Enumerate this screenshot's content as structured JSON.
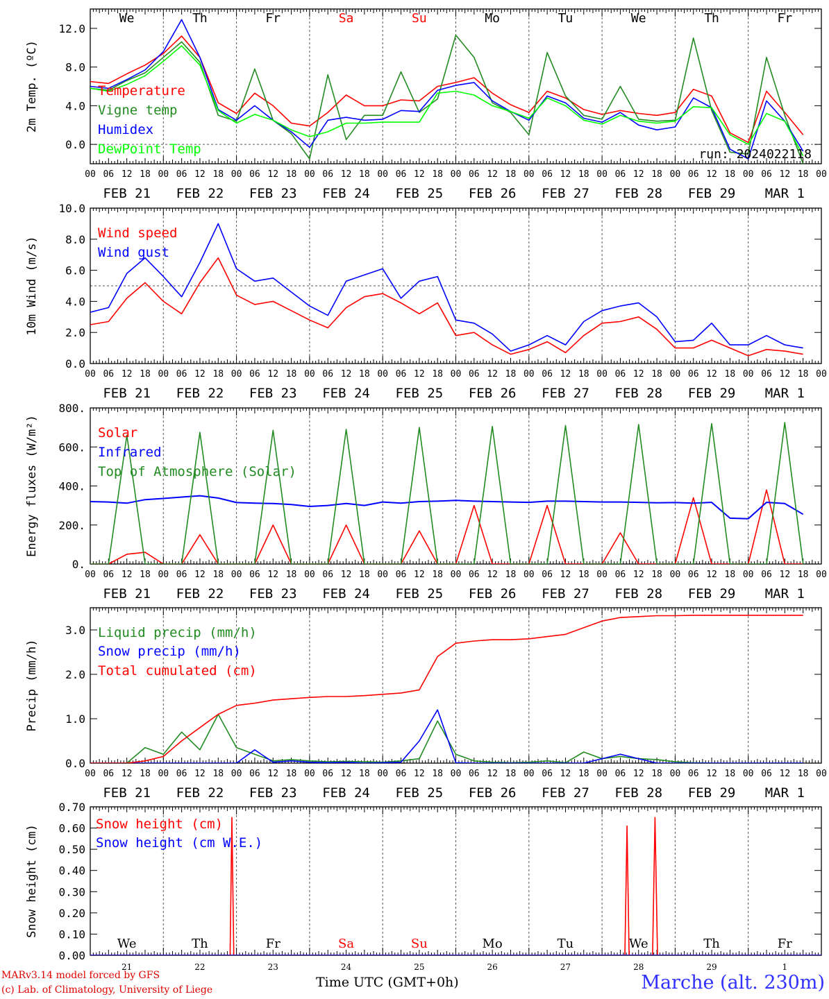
{
  "run_label": "run: 2024022118",
  "footer": {
    "credit_line1": "MARv3.14 model forced by GFS",
    "credit_line2": "(c) Lab. of Climatology, University of Liege",
    "x_axis_title": "Time UTC (GMT+0h)",
    "station": "Marche (alt. 230m)"
  },
  "x_axis": {
    "hour_ticks": [
      "00",
      "06",
      "12",
      "18"
    ],
    "date_labels": [
      "FEB 21",
      "FEB 22",
      "FEB 23",
      "FEB 24",
      "FEB 25",
      "FEB 26",
      "FEB 27",
      "FEB 28",
      "FEB 29",
      "MAR  1"
    ],
    "weekday_labels": [
      "We",
      "Th",
      "Fr",
      "Sa",
      "Su",
      "Mo",
      "Tu",
      "We",
      "Th",
      "Fr"
    ],
    "weekend_indices": [
      3,
      4
    ],
    "day_numbers": [
      "21",
      "22",
      "23",
      "24",
      "25",
      "26",
      "27",
      "28",
      "29",
      "1"
    ]
  },
  "colors": {
    "red": "#ff0000",
    "dark_green": "#228b22",
    "blue": "#0000ff",
    "light_green": "#00ff00",
    "weekend": "#ff0000"
  },
  "chart_data": [
    {
      "type": "line",
      "ylabel": "2m Temp. (ºC)",
      "ylim": [
        -2,
        14
      ],
      "yticks": [
        0,
        4,
        8,
        12
      ],
      "ytick_labels": [
        "0.0",
        "4.0",
        "8.0",
        "12.0"
      ],
      "ref_line": 0,
      "x_hours_step": 6,
      "series": [
        {
          "name": "Temperature",
          "color": "#ff0000",
          "values": [
            6.5,
            6.3,
            7.3,
            8.2,
            9.4,
            11.2,
            9.0,
            4.3,
            3.2,
            5.3,
            4.0,
            2.2,
            1.9,
            3.3,
            5.1,
            4.0,
            4.0,
            4.6,
            4.5,
            6.0,
            6.4,
            6.9,
            5.3,
            4.1,
            3.3,
            5.5,
            4.8,
            3.6,
            3.1,
            3.5,
            3.2,
            3.0,
            3.3,
            5.7,
            5.0,
            1.2,
            0.2,
            5.5,
            3.3,
            1.0
          ]
        },
        {
          "name": "Vigne temp",
          "color": "#228b22",
          "values": [
            5.8,
            5.6,
            6.6,
            7.4,
            9.0,
            10.6,
            8.5,
            3.0,
            2.4,
            7.8,
            2.5,
            1.1,
            -1.5,
            7.2,
            0.5,
            3.0,
            3.0,
            7.5,
            3.3,
            4.7,
            11.3,
            9.0,
            4.3,
            3.3,
            1.0,
            9.5,
            5.0,
            3.0,
            2.6,
            6.0,
            2.6,
            2.4,
            2.5,
            11.0,
            3.5,
            -0.8,
            -1.0,
            9.0,
            3.0,
            -2.0
          ]
        },
        {
          "name": "Humidex",
          "color": "#0000ff",
          "values": [
            6.0,
            5.8,
            6.7,
            7.7,
            9.6,
            12.9,
            9.0,
            3.6,
            2.5,
            4.0,
            2.5,
            1.3,
            -0.3,
            2.5,
            2.8,
            2.5,
            2.6,
            3.5,
            3.4,
            5.6,
            6.1,
            6.4,
            4.5,
            3.4,
            2.5,
            5.0,
            4.3,
            2.7,
            2.3,
            3.3,
            2.0,
            1.5,
            1.8,
            4.8,
            3.8,
            -0.5,
            -1.5,
            4.5,
            2.4,
            -0.7
          ]
        },
        {
          "name": "DewPoint Temp",
          "color": "#00ff00",
          "values": [
            5.8,
            5.5,
            6.2,
            7.1,
            8.6,
            10.2,
            8.2,
            3.5,
            2.2,
            3.1,
            2.5,
            1.5,
            0.8,
            1.3,
            2.2,
            2.2,
            2.3,
            2.3,
            2.3,
            5.3,
            5.5,
            5.1,
            4.0,
            3.4,
            2.7,
            4.8,
            4.0,
            2.5,
            2.1,
            3.0,
            2.4,
            2.2,
            2.4,
            3.9,
            3.8,
            1.0,
            0.0,
            3.2,
            2.4,
            -1.2
          ]
        }
      ]
    },
    {
      "type": "line",
      "ylabel": "10m Wind (m/s)",
      "ylim": [
        0,
        10
      ],
      "yticks": [
        0,
        2,
        4,
        6,
        8,
        10
      ],
      "ytick_labels": [
        "0.0",
        "2.0",
        "4.0",
        "6.0",
        "8.0",
        "10.0"
      ],
      "ref_line": 5,
      "x_hours_step": 6,
      "series": [
        {
          "name": "Wind speed",
          "color": "#ff0000",
          "values": [
            2.5,
            2.7,
            4.2,
            5.2,
            4.0,
            3.2,
            5.2,
            6.8,
            4.4,
            3.8,
            4.0,
            3.4,
            2.8,
            2.3,
            3.6,
            4.3,
            4.5,
            3.9,
            3.2,
            3.9,
            1.8,
            2.0,
            1.2,
            0.6,
            0.9,
            1.4,
            0.7,
            1.8,
            2.6,
            2.7,
            3.0,
            2.2,
            1.0,
            1.0,
            1.5,
            1.0,
            0.5,
            0.9,
            0.8,
            0.6
          ]
        },
        {
          "name": "Wind gust",
          "color": "#0000ff",
          "values": [
            3.3,
            3.6,
            5.8,
            6.8,
            5.6,
            4.3,
            6.5,
            9.0,
            6.1,
            5.3,
            5.5,
            4.6,
            3.7,
            3.1,
            5.3,
            5.7,
            6.1,
            4.2,
            5.3,
            5.6,
            2.8,
            2.6,
            1.9,
            0.8,
            1.2,
            1.8,
            1.2,
            2.7,
            3.4,
            3.7,
            3.9,
            3.0,
            1.4,
            1.5,
            2.6,
            1.2,
            1.2,
            1.8,
            1.2,
            1.0
          ]
        }
      ]
    },
    {
      "type": "line",
      "ylabel": "Energy fluxes (W/m²)",
      "ylim": [
        0,
        800
      ],
      "yticks": [
        0,
        200,
        400,
        600,
        800
      ],
      "ytick_labels": [
        "0.",
        "200.",
        "400.",
        "600.",
        "800."
      ],
      "x_hours_step": 6,
      "series": [
        {
          "name": "Solar",
          "color": "#ff0000",
          "values": [
            0,
            0,
            50,
            60,
            0,
            0,
            150,
            0,
            0,
            0,
            200,
            0,
            0,
            0,
            200,
            0,
            0,
            0,
            170,
            0,
            0,
            300,
            0,
            0,
            0,
            300,
            0,
            0,
            0,
            160,
            0,
            0,
            0,
            340,
            0,
            0,
            0,
            380,
            0,
            0
          ]
        },
        {
          "name": "Infrared",
          "color": "#0000ff",
          "values": [
            320,
            318,
            312,
            330,
            336,
            343,
            350,
            338,
            315,
            312,
            310,
            305,
            295,
            300,
            310,
            300,
            318,
            312,
            320,
            322,
            326,
            322,
            320,
            318,
            316,
            322,
            322,
            320,
            318,
            318,
            316,
            314,
            315,
            312,
            316,
            235,
            232,
            316,
            310,
            255
          ]
        },
        {
          "name": "Top of Atmosphere (Solar)",
          "color": "#228b22",
          "values": [
            0,
            0,
            660,
            0,
            0,
            0,
            675,
            0,
            0,
            0,
            685,
            0,
            0,
            0,
            690,
            0,
            0,
            0,
            700,
            0,
            0,
            0,
            705,
            0,
            0,
            0,
            710,
            0,
            0,
            0,
            715,
            0,
            0,
            0,
            720,
            0,
            0,
            0,
            725,
            0
          ]
        }
      ]
    },
    {
      "type": "line",
      "ylabel": "Precip (mm/h)",
      "ylim": [
        0,
        3.5
      ],
      "yticks": [
        0,
        1,
        2,
        3
      ],
      "ytick_labels": [
        "0.0",
        "1.0",
        "2.0",
        "3.0"
      ],
      "x_hours_step": 6,
      "series": [
        {
          "name": "Liquid precip (mm/h)",
          "color": "#228b22",
          "values": [
            0,
            0,
            0,
            0.35,
            0.2,
            0.7,
            0.3,
            1.1,
            0.35,
            0.2,
            0.05,
            0.08,
            0.05,
            0.03,
            0.04,
            0.03,
            0.02,
            0.05,
            0.1,
            0.95,
            0.2,
            0.05,
            0.02,
            0.01,
            0.02,
            0.05,
            0.01,
            0.25,
            0.1,
            0.15,
            0.1,
            0.08,
            0.03,
            0.01,
            0,
            0,
            0,
            0,
            0,
            0
          ]
        },
        {
          "name": "Snow precip (mm/h)",
          "color": "#0000ff",
          "values": [
            0,
            0,
            0,
            0,
            0,
            0,
            0,
            0,
            0,
            0.3,
            0.02,
            0.05,
            0.02,
            0.01,
            0.02,
            0,
            0.01,
            0.02,
            0.5,
            1.2,
            0.01,
            0,
            0,
            0,
            0,
            0,
            0,
            0,
            0.1,
            0.2,
            0.1,
            0,
            0,
            0,
            0,
            0,
            0,
            0,
            0,
            0
          ]
        },
        {
          "name": "Total cumulated (cm)",
          "color": "#ff0000",
          "values": [
            0,
            0,
            0,
            0.05,
            0.15,
            0.5,
            0.8,
            1.1,
            1.3,
            1.35,
            1.42,
            1.45,
            1.48,
            1.5,
            1.5,
            1.52,
            1.55,
            1.58,
            1.65,
            2.4,
            2.7,
            2.75,
            2.78,
            2.78,
            2.8,
            2.85,
            2.9,
            3.05,
            3.2,
            3.28,
            3.3,
            3.32,
            3.32,
            3.33,
            3.33,
            3.33,
            3.33,
            3.33,
            3.33,
            3.33
          ]
        }
      ]
    },
    {
      "type": "line",
      "ylabel": "Snow height (cm)",
      "ylim": [
        0,
        0.7
      ],
      "yticks": [
        0,
        0.1,
        0.2,
        0.3,
        0.4,
        0.5,
        0.6,
        0.7
      ],
      "ytick_labels": [
        "0.00",
        "0.10",
        "0.20",
        "0.30",
        "0.40",
        "0.50",
        "0.60",
        "0.70"
      ],
      "series": [
        {
          "name": "Snow height (cm)",
          "color": "#ff0000",
          "points": [
            [
              0,
              0
            ],
            [
              45.9,
              0
            ],
            [
              46.5,
              0.65
            ],
            [
              47.1,
              0
            ],
            [
              175.5,
              0
            ],
            [
              176.2,
              0.61
            ],
            [
              176.9,
              0
            ],
            [
              184.6,
              0
            ],
            [
              185.4,
              0.65
            ],
            [
              186.2,
              0
            ],
            [
              240,
              0
            ]
          ]
        },
        {
          "name": "Snow height (cm W.E.)",
          "color": "#0000ff",
          "points": [
            [
              0,
              0
            ],
            [
              240,
              0
            ]
          ]
        }
      ]
    }
  ]
}
